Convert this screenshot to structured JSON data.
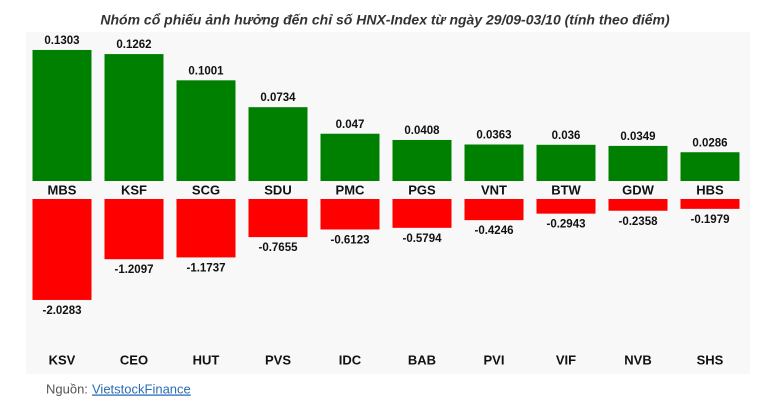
{
  "chart_data": [
    {
      "type": "bar",
      "title": "Nhóm cổ phiếu ảnh hưởng đến chỉ số HNX-Index từ ngày 29/09-03/10 (tính theo điểm)",
      "categories": [
        "MBS",
        "KSF",
        "SCG",
        "SDU",
        "PMC",
        "PGS",
        "VNT",
        "BTW",
        "GDW",
        "HBS"
      ],
      "values": [
        0.1303,
        0.1262,
        0.1001,
        0.0734,
        0.047,
        0.0408,
        0.0363,
        0.036,
        0.0349,
        0.0286
      ],
      "color": "#008000",
      "ylim": [
        0,
        0.14
      ]
    },
    {
      "type": "bar",
      "categories": [
        "KSV",
        "CEO",
        "HUT",
        "PVS",
        "IDC",
        "BAB",
        "PVI",
        "VIF",
        "NVB",
        "SHS"
      ],
      "values": [
        -2.0283,
        -1.2097,
        -1.1737,
        -0.7655,
        -0.6123,
        -0.5794,
        -0.4246,
        -0.2943,
        -0.2358,
        -0.1979
      ],
      "color": "#ff0000",
      "ylim": [
        -2.2,
        0
      ]
    }
  ],
  "source": {
    "label": "Nguồn:",
    "link": "VietstockFinance"
  }
}
